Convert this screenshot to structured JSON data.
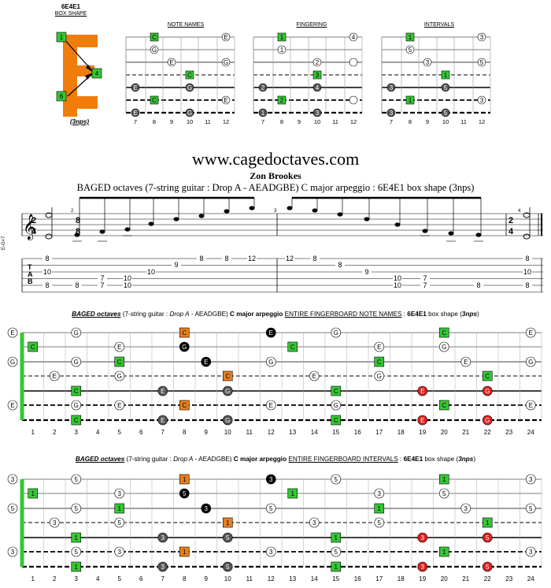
{
  "box_shape": {
    "name": "6E4E1",
    "label": "BOX SHAPE",
    "nps": "(3nps)",
    "markers": [
      "1",
      "4",
      "6"
    ]
  },
  "mini": {
    "titles": [
      "NOTE NAMES",
      "FINGERING",
      "INTERVALS"
    ],
    "frets": [
      "7",
      "8",
      "9",
      "10",
      "11",
      "12"
    ]
  },
  "site": "www.cagedoctaves.com",
  "author": "Zon Brookes",
  "subtitle": "BAGED octaves (7-string guitar : Drop A - AEADGBE) C major arpeggio : 6E4E1 box shape (3nps)",
  "staff": {
    "clef_label": "E-G×7",
    "time1": [
      "2",
      "4"
    ],
    "time2": [
      "8",
      "8"
    ],
    "measure_nums": [
      "2",
      "3",
      "4"
    ],
    "tab_letters": [
      "T",
      "A",
      "B"
    ],
    "tab_nums": {
      "m1": [
        "8",
        "10",
        "8"
      ],
      "m2": [
        "8",
        "7",
        "10",
        "7",
        "10",
        "10",
        "9",
        "8",
        "8",
        "12"
      ],
      "m3": [
        "12",
        "8",
        "8",
        "9",
        "10",
        "10",
        "7",
        "7",
        "8"
      ],
      "m4": [
        "8",
        "10",
        "8"
      ]
    }
  },
  "board1": {
    "title_italic": "BAGED octaves",
    "title_mid1": " (7-string guitar : ",
    "title_drop": "Drop A",
    "title_mid2": " - AEADGBE) ",
    "title_bold": "C major arpeggio",
    "title_mid3": " ",
    "title_u": "ENTIRE FINGERBOARD NOTE NAMES",
    "title_mid4": " : ",
    "title_bold2": "6E4E1",
    "title_mid5": " box shape (",
    "title_nps": "3nps",
    "title_end": ")"
  },
  "board2": {
    "title_italic": "BAGED octaves",
    "title_mid1": " (7-string guitar : ",
    "title_drop": "Drop A",
    "title_mid2": " - AEADGBE) ",
    "title_bold": "C major arpeggio",
    "title_mid3": " ",
    "title_u": "ENTIRE FINGERBOARD INTERVALS",
    "title_mid4": " : ",
    "title_bold2": "6E4E1",
    "title_mid5": " box shape (",
    "title_nps": "3nps",
    "title_end": ")"
  },
  "fret_numbers": [
    "1",
    "2",
    "3",
    "4",
    "5",
    "6",
    "7",
    "8",
    "9",
    "10",
    "11",
    "12",
    "13",
    "14",
    "15",
    "16",
    "17",
    "18",
    "19",
    "20",
    "21",
    "22",
    "23",
    "24"
  ],
  "colors": {
    "green": "#35c735",
    "orange": "#e8801e",
    "red": "#e02020",
    "gray": "#555555",
    "black": "#000000"
  }
}
